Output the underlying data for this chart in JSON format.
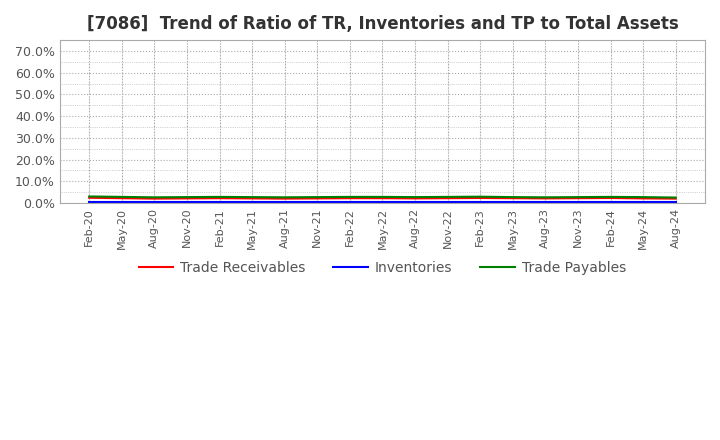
{
  "title": "[7086]  Trend of Ratio of TR, Inventories and TP to Total Assets",
  "title_fontsize": 12,
  "background_color": "#ffffff",
  "plot_background_color": "#ffffff",
  "grid_color": "#aaaaaa",
  "ylim": [
    0.0,
    0.75
  ],
  "yticks": [
    0.0,
    0.1,
    0.2,
    0.3,
    0.4,
    0.5,
    0.6,
    0.7
  ],
  "ytick_labels": [
    "0.0%",
    "10.0%",
    "20.0%",
    "30.0%",
    "40.0%",
    "50.0%",
    "60.0%",
    "70.0%"
  ],
  "x_labels": [
    "Feb-20",
    "May-20",
    "Aug-20",
    "Nov-20",
    "Feb-21",
    "May-21",
    "Aug-21",
    "Nov-21",
    "Feb-22",
    "May-22",
    "Aug-22",
    "Nov-22",
    "Feb-23",
    "May-23",
    "Aug-23",
    "Nov-23",
    "Feb-24",
    "May-24",
    "Aug-24"
  ],
  "trade_receivables": [
    0.024,
    0.022,
    0.02,
    0.021,
    0.022,
    0.021,
    0.02,
    0.021,
    0.022,
    0.022,
    0.021,
    0.022,
    0.023,
    0.022,
    0.021,
    0.022,
    0.023,
    0.021,
    0.02
  ],
  "inventories": [
    0.004,
    0.004,
    0.004,
    0.004,
    0.004,
    0.004,
    0.004,
    0.004,
    0.004,
    0.004,
    0.004,
    0.004,
    0.004,
    0.004,
    0.004,
    0.004,
    0.004,
    0.004,
    0.004
  ],
  "trade_payables": [
    0.03,
    0.028,
    0.026,
    0.027,
    0.028,
    0.027,
    0.026,
    0.027,
    0.028,
    0.028,
    0.027,
    0.028,
    0.029,
    0.027,
    0.026,
    0.027,
    0.028,
    0.027,
    0.025
  ],
  "tr_color": "#ff0000",
  "inv_color": "#0000ff",
  "tp_color": "#008000",
  "legend_labels": [
    "Trade Receivables",
    "Inventories",
    "Trade Payables"
  ]
}
